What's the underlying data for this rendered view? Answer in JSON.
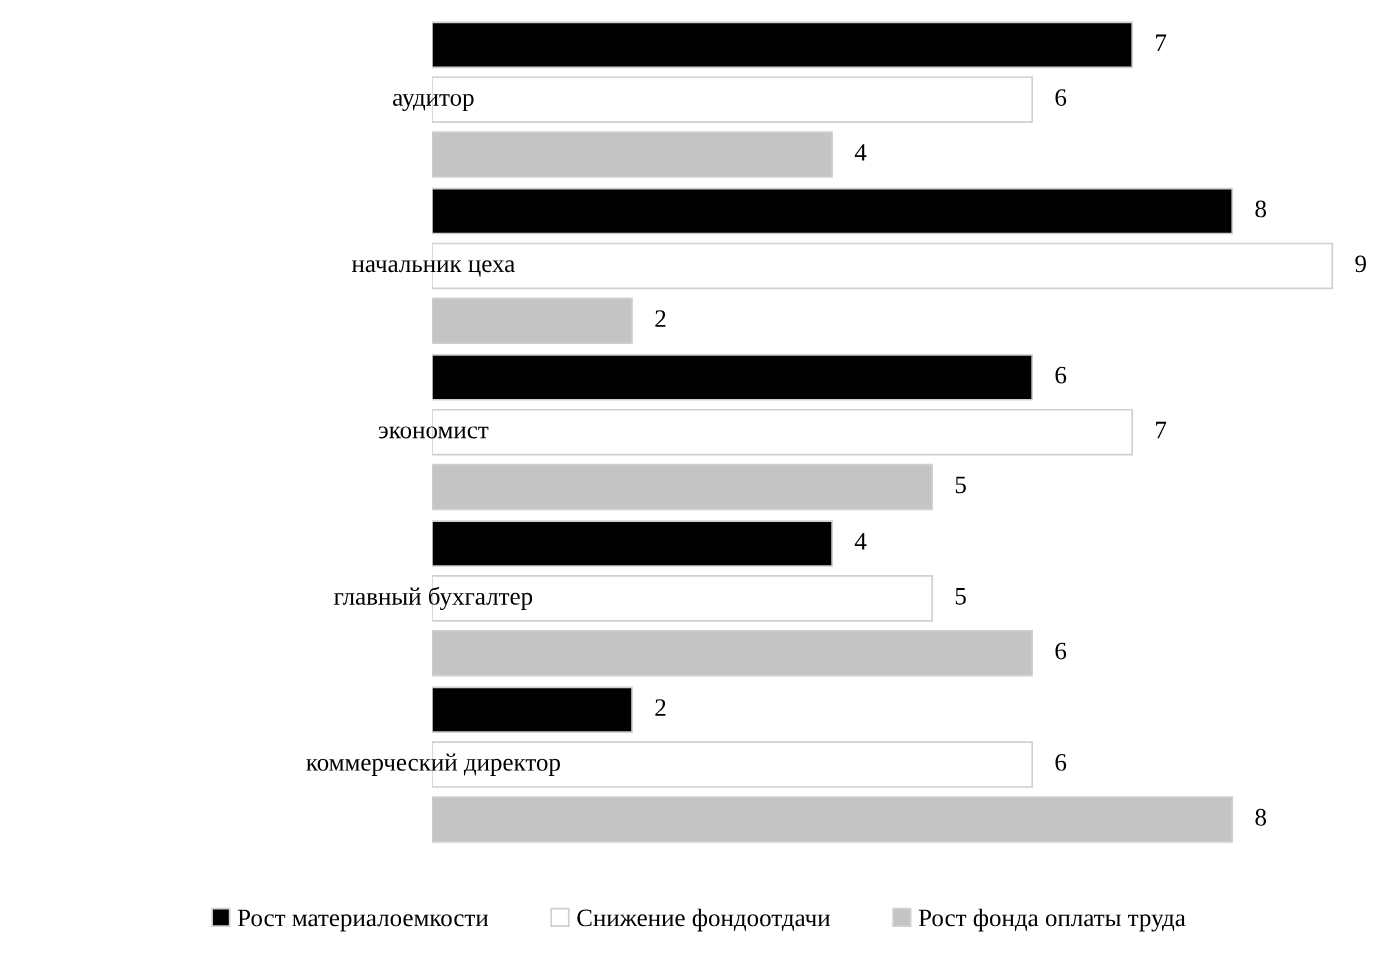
{
  "chart_data": {
    "type": "bar",
    "orientation": "horizontal",
    "categories": [
      "аудитор",
      "начальник цеха",
      "экономист",
      "главный бухгалтер",
      "коммерческий директор"
    ],
    "series": [
      {
        "name": "Рост материалоемкости",
        "color": "#000000",
        "values": [
          7,
          8,
          6,
          4,
          2
        ]
      },
      {
        "name": "Снижение фондоотдачи",
        "color": "#ffffff",
        "values": [
          6,
          9,
          7,
          5,
          6
        ]
      },
      {
        "name": "Рост фонда оплаты труда",
        "color": "#c4c4c4",
        "values": [
          4,
          2,
          5,
          6,
          8
        ]
      }
    ],
    "data_labels": true,
    "legend": "bottom",
    "tick_labels": false
  }
}
